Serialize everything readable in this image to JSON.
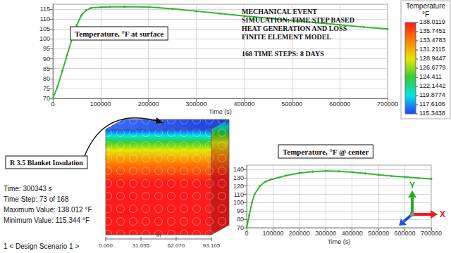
{
  "chart_data": [
    {
      "type": "line",
      "annotation": "Temperature, °F at surface",
      "x_label": "Time (s)",
      "x": [
        0,
        10000,
        20000,
        30000,
        40000,
        50000,
        60000,
        70000,
        80000,
        100000,
        120000,
        150000,
        200000,
        250000,
        300000,
        350000,
        400000,
        450000,
        500000,
        550000,
        600000,
        650000,
        700000
      ],
      "values": [
        70,
        76,
        84,
        92,
        100,
        107,
        112,
        114.5,
        115.6,
        116,
        116.2,
        116.3,
        116.1,
        115.2,
        114,
        112.8,
        111.6,
        110.5,
        109.3,
        108.2,
        107.1,
        106,
        105
      ],
      "color": "#33b533",
      "marker": "circle",
      "line_style": "solid",
      "xlim": [
        0,
        700000
      ],
      "xticks": [
        0,
        100000,
        200000,
        300000,
        400000,
        500000,
        600000,
        700000
      ],
      "ylim": [
        70,
        117.5
      ],
      "yticks": [
        70,
        75,
        80,
        85,
        90,
        95,
        100,
        105,
        110,
        115
      ],
      "grid": true
    },
    {
      "type": "line",
      "annotation": "Temperature, °F @ center",
      "x_label": "Time (s)",
      "x": [
        0,
        10000,
        20000,
        30000,
        50000,
        70000,
        90000,
        120000,
        150000,
        200000,
        250000,
        300000,
        350000,
        400000,
        450000,
        500000,
        550000,
        600000,
        650000,
        700000
      ],
      "values": [
        70,
        85,
        100,
        110,
        120,
        125,
        127.5,
        130,
        132.5,
        135.5,
        137.3,
        138,
        137.6,
        136.5,
        135,
        133.5,
        132,
        130.8,
        129.6,
        128.5
      ],
      "color": "#33b533",
      "marker": "circle",
      "line_style": "solid",
      "xlim": [
        0,
        700000
      ],
      "xticks": [
        0,
        100000,
        200000,
        300000,
        400000,
        500000,
        600000,
        700000
      ],
      "ylim": [
        70,
        145
      ],
      "yticks": [
        70,
        80,
        90,
        100,
        110,
        120,
        130,
        140
      ],
      "grid": true
    }
  ],
  "header": {
    "lines": [
      "MECHANICAL EVENT",
      "SIMULATION: TIME STEP BASED",
      "HEAT GENERATION AND LOSS",
      "FINITE ELEMENT MODEL"
    ],
    "subtitle": "168 TIME STEPS: 8 DAYS"
  },
  "color_bar": {
    "title": "Temperature",
    "unit": "°F",
    "range": [
      115.3438,
      138.0119
    ],
    "ticks": [
      138.0119,
      135.7451,
      133.4783,
      131.2115,
      128.9447,
      126.6779,
      124.411,
      122.1442,
      119.8774,
      117.6106,
      115.3438
    ],
    "colors": [
      "#ff1a1a",
      "#ff8000",
      "#e6e600",
      "#33cc33",
      "#00e5e5",
      "#2040ff"
    ]
  },
  "model": {
    "label": "R 3.5 Blanket Insulation"
  },
  "status": {
    "lines": [
      "Time: 300343 s",
      "Time Step: 73 of 168",
      "Maximum Value: 138.012 °F",
      "Minimum Value: 115.344 °F"
    ],
    "scenario": "1 < Design Scenario 1 >"
  },
  "ruler": {
    "labels": [
      "0.000",
      "31.035",
      "62.070",
      "93.105"
    ],
    "unit": "in"
  },
  "triad": {
    "x": "X",
    "y": "Y",
    "x_color": "#e02020",
    "y_color": "#20b020",
    "z_color": "#2050e0"
  }
}
